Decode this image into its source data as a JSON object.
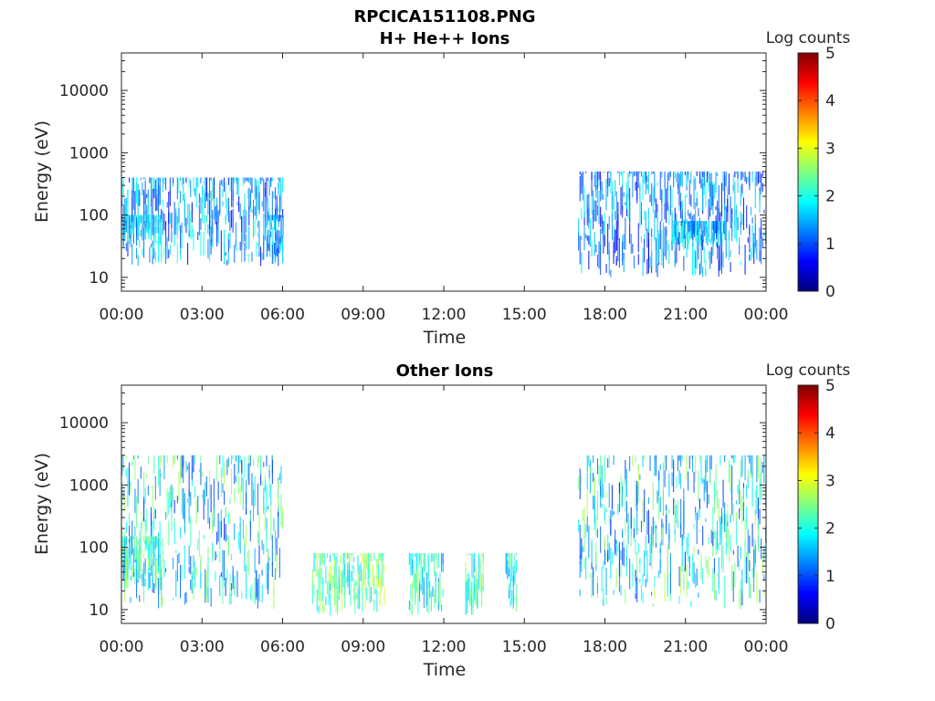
{
  "figure": {
    "title": "RPCICA151108.PNG"
  },
  "colormap": {
    "name": "jet",
    "stops": [
      "#00007f",
      "#0000ff",
      "#0080ff",
      "#00ffff",
      "#80ff80",
      "#ffff00",
      "#ff8000",
      "#ff0000",
      "#7f0000"
    ]
  },
  "chart_data": [
    {
      "type": "heatmap",
      "title": "H+ He++ Ions",
      "xlabel": "Time",
      "ylabel": "Energy (eV)",
      "xlim_hours": [
        0,
        24
      ],
      "x_tick_labels": [
        "00:00",
        "03:00",
        "06:00",
        "09:00",
        "12:00",
        "15:00",
        "18:00",
        "21:00",
        "00:00"
      ],
      "y_scale": "log",
      "ylim": [
        6,
        40000
      ],
      "y_tick_values": [
        10,
        100,
        1000,
        10000
      ],
      "y_tick_labels": [
        "10",
        "100",
        "1000",
        "10000"
      ],
      "colorbar": {
        "label": "Log counts",
        "min": 0,
        "max": 5,
        "tick_labels": [
          "0",
          "1",
          "2",
          "3",
          "4",
          "5"
        ]
      },
      "data_blocks": [
        {
          "t_start_h": 0.0,
          "t_end_h": 6.0,
          "e_min": 15,
          "e_max": 400,
          "log_counts_typical": 1.3,
          "log_counts_max": 2.2
        },
        {
          "t_start_h": 0.0,
          "t_end_h": 1.5,
          "e_min": 30,
          "e_max": 100,
          "log_counts_typical": 1.8,
          "log_counts_max": 2.3
        },
        {
          "t_start_h": 5.4,
          "t_end_h": 6.0,
          "e_min": 20,
          "e_max": 100,
          "log_counts_typical": 1.6,
          "log_counts_max": 2.0
        },
        {
          "t_start_h": 17.0,
          "t_end_h": 24.0,
          "e_min": 10,
          "e_max": 500,
          "log_counts_typical": 1.2,
          "log_counts_max": 2.0
        },
        {
          "t_start_h": 20.5,
          "t_end_h": 22.5,
          "e_min": 30,
          "e_max": 80,
          "log_counts_typical": 1.6,
          "log_counts_max": 2.2
        }
      ]
    },
    {
      "type": "heatmap",
      "title": "Other Ions",
      "xlabel": "Time",
      "ylabel": "Energy (eV)",
      "xlim_hours": [
        0,
        24
      ],
      "x_tick_labels": [
        "00:00",
        "03:00",
        "06:00",
        "09:00",
        "12:00",
        "15:00",
        "18:00",
        "21:00",
        "00:00"
      ],
      "y_scale": "log",
      "ylim": [
        6,
        40000
      ],
      "y_tick_values": [
        10,
        100,
        1000,
        10000
      ],
      "y_tick_labels": [
        "10",
        "100",
        "1000",
        "10000"
      ],
      "colorbar": {
        "label": "Log counts",
        "min": 0,
        "max": 5,
        "tick_labels": [
          "0",
          "1",
          "2",
          "3",
          "4",
          "5"
        ]
      },
      "data_blocks": [
        {
          "t_start_h": 0.0,
          "t_end_h": 6.0,
          "e_min": 10,
          "e_max": 3000,
          "log_counts_typical": 1.5,
          "log_counts_max": 2.8
        },
        {
          "t_start_h": 0.0,
          "t_end_h": 1.5,
          "e_min": 20,
          "e_max": 150,
          "log_counts_typical": 2.2,
          "log_counts_max": 2.8
        },
        {
          "t_start_h": 7.1,
          "t_end_h": 9.8,
          "e_min": 8,
          "e_max": 80,
          "log_counts_typical": 2.3,
          "log_counts_max": 3.0
        },
        {
          "t_start_h": 10.7,
          "t_end_h": 12.0,
          "e_min": 8,
          "e_max": 80,
          "log_counts_typical": 2.0,
          "log_counts_max": 2.6
        },
        {
          "t_start_h": 12.8,
          "t_end_h": 13.5,
          "e_min": 8,
          "e_max": 80,
          "log_counts_typical": 2.2,
          "log_counts_max": 2.8
        },
        {
          "t_start_h": 14.3,
          "t_end_h": 14.7,
          "e_min": 8,
          "e_max": 80,
          "log_counts_typical": 2.0,
          "log_counts_max": 2.6
        },
        {
          "t_start_h": 17.0,
          "t_end_h": 24.0,
          "e_min": 10,
          "e_max": 3000,
          "log_counts_typical": 1.5,
          "log_counts_max": 2.8
        }
      ]
    }
  ]
}
